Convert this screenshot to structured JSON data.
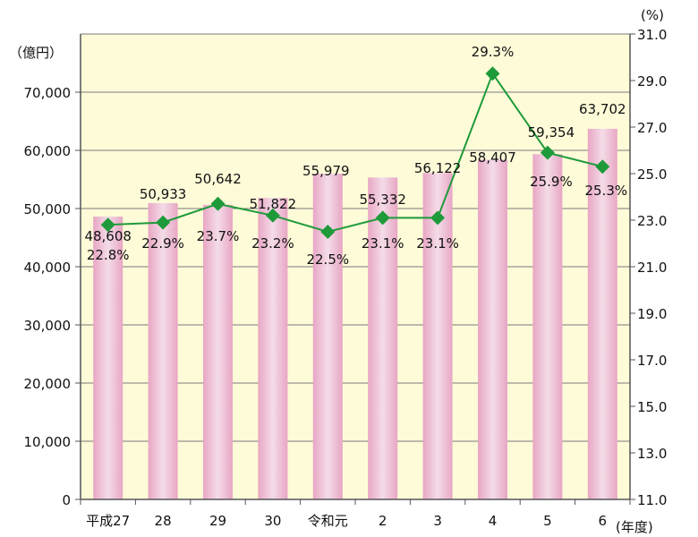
{
  "chart_data": {
    "type": "bar",
    "categories": [
      "平成27",
      "28",
      "29",
      "30",
      "令和元",
      "2",
      "3",
      "4",
      "5",
      "6"
    ],
    "series": [
      {
        "name": "amount",
        "type": "bar",
        "axis": "left",
        "values": [
          48608,
          50933,
          50642,
          51822,
          55979,
          55332,
          56122,
          58407,
          59354,
          63702
        ],
        "labels": [
          "48,608",
          "50,933",
          "50,642",
          "51,822",
          "55,979",
          "55,332",
          "56,122",
          "58,407",
          "59,354",
          "63,702"
        ]
      },
      {
        "name": "ratio",
        "type": "line",
        "axis": "right",
        "values": [
          22.8,
          22.9,
          23.7,
          23.2,
          22.5,
          23.1,
          23.1,
          29.3,
          25.9,
          25.3
        ],
        "labels": [
          "22.8%",
          "22.9%",
          "23.7%",
          "23.2%",
          "22.5%",
          "23.1%",
          "23.1%",
          "29.3%",
          "25.9%",
          "25.3%"
        ]
      }
    ],
    "left_axis": {
      "unit": "（億円）",
      "ylim": [
        0,
        80000
      ],
      "ticks": [
        0,
        10000,
        20000,
        30000,
        40000,
        50000,
        60000,
        70000
      ],
      "tick_labels": [
        "0",
        "10,000",
        "20,000",
        "30,000",
        "40,000",
        "50,000",
        "60,000",
        "70,000"
      ]
    },
    "right_axis": {
      "unit": "(%)",
      "ylim": [
        11.0,
        31.0
      ],
      "ticks": [
        11,
        13,
        15,
        17,
        19,
        21,
        23,
        25,
        27,
        29,
        31
      ],
      "tick_labels": [
        "11.0",
        "13.0",
        "15.0",
        "17.0",
        "19.0",
        "21.0",
        "23.0",
        "25.0",
        "27.0",
        "29.0",
        "31.0"
      ]
    },
    "x_unit": "(年度)",
    "colors": {
      "bar": "#e8a6c4",
      "bar_light": "#f4dce8",
      "line": "#1f9a3a",
      "plot_bg": "#fdfbd8",
      "axis": "#555555"
    }
  }
}
